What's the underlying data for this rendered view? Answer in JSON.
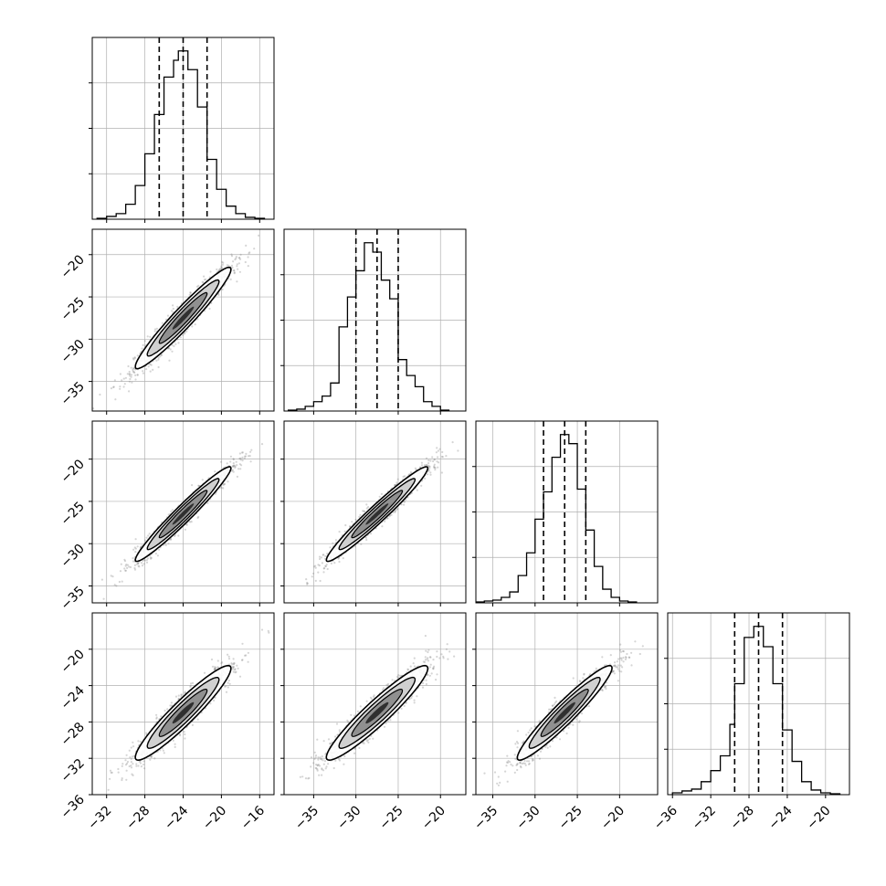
{
  "colors": {
    "background": "#ffffff",
    "frame": "#000000",
    "grid": "#b0b0b0",
    "points": "#888888",
    "contour": "#000000",
    "hist": "#000000"
  },
  "chart_data": {
    "type": "corner",
    "n_params": 4,
    "grid": true,
    "axes": [
      {
        "range": [
          -33.5,
          -14.5
        ],
        "ticks": [
          -32,
          -28,
          -24,
          -20,
          -16
        ],
        "tick_labels": [
          "−32",
          "−28",
          "−24",
          "−20",
          "−16"
        ]
      },
      {
        "range": [
          -38.5,
          -17.0
        ],
        "ticks": [
          -35,
          -30,
          -25,
          -20
        ],
        "tick_labels": [
          "−35",
          "−30",
          "−25",
          "−20"
        ]
      },
      {
        "range": [
          -37.0,
          -15.5
        ],
        "ticks": [
          -35,
          -30,
          -25,
          -20
        ],
        "tick_labels": [
          "−35",
          "−30",
          "−25",
          "−20"
        ]
      },
      {
        "range": [
          -36.5,
          -17.5
        ],
        "ticks": [
          -36,
          -32,
          -28,
          -24,
          -20
        ],
        "tick_labels": [
          "−36",
          "−32",
          "−28",
          "−24",
          "−20"
        ]
      }
    ],
    "left_axes": [
      null,
      {
        "range": [
          -38.5,
          -17.0
        ],
        "ticks": [
          -35,
          -30,
          -25,
          -20
        ],
        "tick_labels": [
          "−35",
          "−30",
          "−25",
          "−20"
        ]
      },
      {
        "range": [
          -37.0,
          -15.5
        ],
        "ticks": [
          -35,
          -30,
          -25,
          -20
        ],
        "tick_labels": [
          "−35",
          "−30",
          "−25",
          "−20"
        ]
      },
      {
        "range": [
          -36.0,
          -16.0
        ],
        "ticks": [
          -36,
          -32,
          -28,
          -24,
          -20
        ],
        "tick_labels": [
          "−36",
          "−32",
          "−28",
          "−24",
          "−20"
        ]
      }
    ],
    "marginals": [
      {
        "quantiles": [
          -26.5,
          -24.0,
          -21.5
        ],
        "hist_edges": [
          -33.0,
          -32.0,
          -31.0,
          -30.0,
          -29.0,
          -28.0,
          -27.0,
          -26.0,
          -25.0,
          -24.5,
          -23.5,
          -22.5,
          -21.5,
          -20.5,
          -19.5,
          -18.5,
          -17.5,
          -16.5,
          -15.5
        ],
        "hist_counts": [
          1,
          3,
          6,
          16,
          36,
          70,
          112,
          152,
          170,
          180,
          160,
          120,
          64,
          32,
          14,
          6,
          2,
          1
        ]
      },
      {
        "quantiles": [
          -30.0,
          -27.5,
          -25.0
        ],
        "hist_edges": [
          -38.0,
          -37.0,
          -36.0,
          -35.0,
          -34.0,
          -33.0,
          -32.0,
          -31.0,
          -30.0,
          -29.0,
          -28.0,
          -27.0,
          -26.0,
          -25.0,
          -24.0,
          -23.0,
          -22.0,
          -21.0,
          -20.0,
          -19.0
        ],
        "hist_counts": [
          1,
          2,
          5,
          10,
          16,
          30,
          90,
          122,
          150,
          180,
          170,
          140,
          120,
          55,
          38,
          26,
          10,
          5,
          1
        ]
      },
      {
        "quantiles": [
          -29.0,
          -26.5,
          -24.0
        ],
        "hist_edges": [
          -37.0,
          -36.0,
          -35.0,
          -34.0,
          -33.0,
          -32.0,
          -31.0,
          -30.0,
          -29.0,
          -28.0,
          -27.0,
          -26.0,
          -25.0,
          -24.0,
          -23.0,
          -22.0,
          -21.0,
          -20.0,
          -19.0,
          -18.0
        ],
        "hist_counts": [
          1,
          2,
          3,
          6,
          12,
          30,
          55,
          92,
          122,
          160,
          185,
          175,
          125,
          80,
          40,
          15,
          6,
          2,
          1
        ]
      },
      {
        "quantiles": [
          -29.5,
          -27.0,
          -24.5
        ],
        "hist_edges": [
          -36.0,
          -35.0,
          -34.0,
          -33.0,
          -32.0,
          -31.0,
          -30.0,
          -29.5,
          -28.5,
          -27.5,
          -26.5,
          -25.5,
          -24.5,
          -23.5,
          -22.5,
          -21.5,
          -20.5,
          -19.5,
          -18.5
        ],
        "hist_counts": [
          2,
          4,
          6,
          14,
          26,
          42,
          76,
          120,
          170,
          182,
          160,
          120,
          70,
          36,
          14,
          5,
          2,
          1
        ]
      }
    ],
    "pairs": [
      {
        "row": 1,
        "col": 0,
        "mean": [
          -24.0,
          -27.5
        ],
        "sd": [
          2.5,
          3.0
        ],
        "rho": 0.96
      },
      {
        "row": 2,
        "col": 0,
        "mean": [
          -24.0,
          -26.5
        ],
        "sd": [
          2.5,
          2.8
        ],
        "rho": 0.97
      },
      {
        "row": 2,
        "col": 1,
        "mean": [
          -27.5,
          -26.5
        ],
        "sd": [
          3.0,
          2.8
        ],
        "rho": 0.97
      },
      {
        "row": 3,
        "col": 0,
        "mean": [
          -24.0,
          -27.0
        ],
        "sd": [
          2.5,
          2.6
        ],
        "rho": 0.94
      },
      {
        "row": 3,
        "col": 1,
        "mean": [
          -27.5,
          -27.0
        ],
        "sd": [
          3.0,
          2.6
        ],
        "rho": 0.94
      },
      {
        "row": 3,
        "col": 2,
        "mean": [
          -26.5,
          -27.0
        ],
        "sd": [
          2.8,
          2.6
        ],
        "rho": 0.95
      }
    ],
    "contour_levels_sigma": [
      1,
      1.5,
      2.0
    ]
  }
}
